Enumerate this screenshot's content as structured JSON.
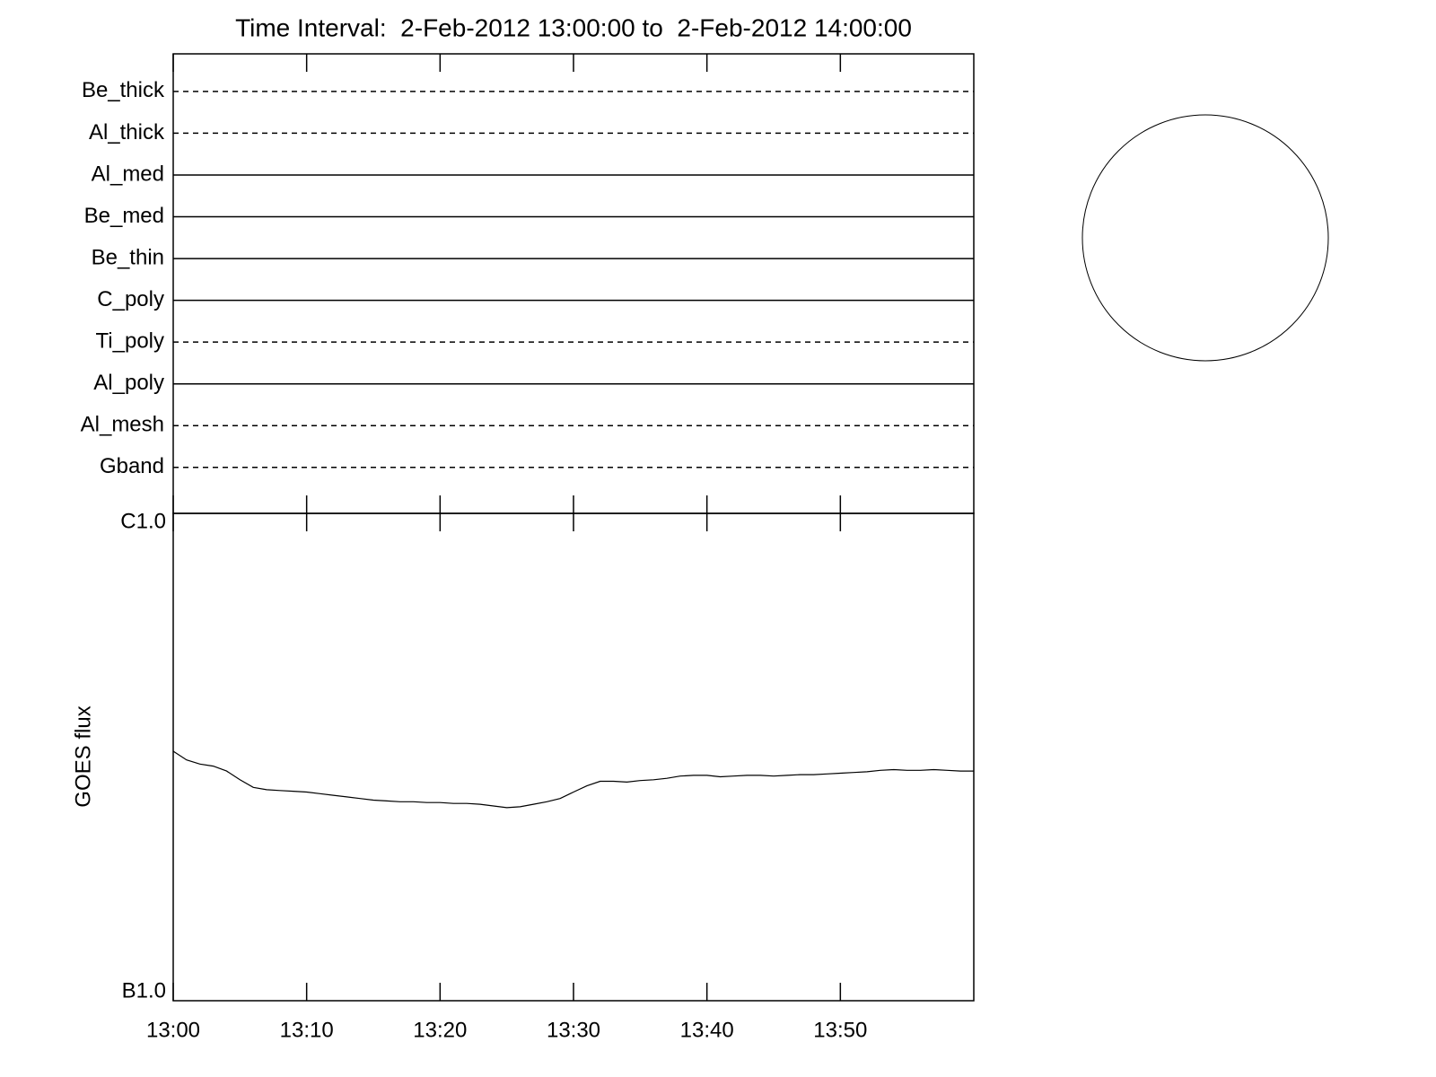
{
  "chart_data": [
    {
      "type": "timeline",
      "title": "Time Interval:  2-Feb-2012 13:00:00 to  2-Feb-2012 14:00:00",
      "categories": [
        "Be_thick",
        "Al_thick",
        "Al_med",
        "Be_med",
        "Be_thin",
        "C_poly",
        "Ti_poly",
        "Al_poly",
        "Al_mesh",
        "Gband"
      ],
      "line_styles": [
        "dashed",
        "dashed",
        "solid",
        "solid",
        "solid",
        "solid",
        "dashed",
        "solid",
        "dashed",
        "dashed"
      ],
      "color": "#000000"
    },
    {
      "type": "line",
      "ylabel": "GOES flux",
      "log_y": true,
      "color": "#000000",
      "xlim": [
        "13:00",
        "14:00"
      ],
      "xticks": [
        "13:00",
        "13:10",
        "13:20",
        "13:30",
        "13:40",
        "13:50"
      ],
      "ylim": [
        1e-07,
        1e-06
      ],
      "yticks": [
        {
          "value": 1e-07,
          "label": "B1.0"
        },
        {
          "value": 1e-06,
          "label": "C1.0"
        }
      ],
      "x": [
        "13:00",
        "13:01",
        "13:02",
        "13:03",
        "13:04",
        "13:05",
        "13:06",
        "13:07",
        "13:08",
        "13:09",
        "13:10",
        "13:11",
        "13:12",
        "13:13",
        "13:14",
        "13:15",
        "13:16",
        "13:17",
        "13:18",
        "13:19",
        "13:20",
        "13:21",
        "13:22",
        "13:23",
        "13:24",
        "13:25",
        "13:26",
        "13:27",
        "13:28",
        "13:29",
        "13:30",
        "13:31",
        "13:32",
        "13:33",
        "13:34",
        "13:35",
        "13:36",
        "13:37",
        "13:38",
        "13:39",
        "13:40",
        "13:41",
        "13:42",
        "13:43",
        "13:44",
        "13:45",
        "13:46",
        "13:47",
        "13:48",
        "13:49",
        "13:50",
        "13:51",
        "13:52",
        "13:53",
        "13:54",
        "13:55",
        "13:56",
        "13:57",
        "13:58",
        "13:59",
        "14:00"
      ],
      "values": [
        3.25e-07,
        3.12e-07,
        3.06e-07,
        3.03e-07,
        2.96e-07,
        2.84e-07,
        2.74e-07,
        2.71e-07,
        2.7e-07,
        2.69e-07,
        2.68e-07,
        2.66e-07,
        2.64e-07,
        2.62e-07,
        2.6e-07,
        2.58e-07,
        2.57e-07,
        2.56e-07,
        2.56e-07,
        2.55e-07,
        2.55e-07,
        2.54e-07,
        2.54e-07,
        2.53e-07,
        2.51e-07,
        2.49e-07,
        2.5e-07,
        2.53e-07,
        2.56e-07,
        2.6e-07,
        2.68e-07,
        2.76e-07,
        2.82e-07,
        2.82e-07,
        2.81e-07,
        2.83e-07,
        2.84e-07,
        2.86e-07,
        2.89e-07,
        2.9e-07,
        2.9e-07,
        2.88e-07,
        2.89e-07,
        2.9e-07,
        2.9e-07,
        2.89e-07,
        2.9e-07,
        2.91e-07,
        2.91e-07,
        2.92e-07,
        2.93e-07,
        2.94e-07,
        2.95e-07,
        2.97e-07,
        2.98e-07,
        2.97e-07,
        2.97e-07,
        2.98e-07,
        2.97e-07,
        2.96e-07,
        2.96e-07
      ]
    }
  ]
}
